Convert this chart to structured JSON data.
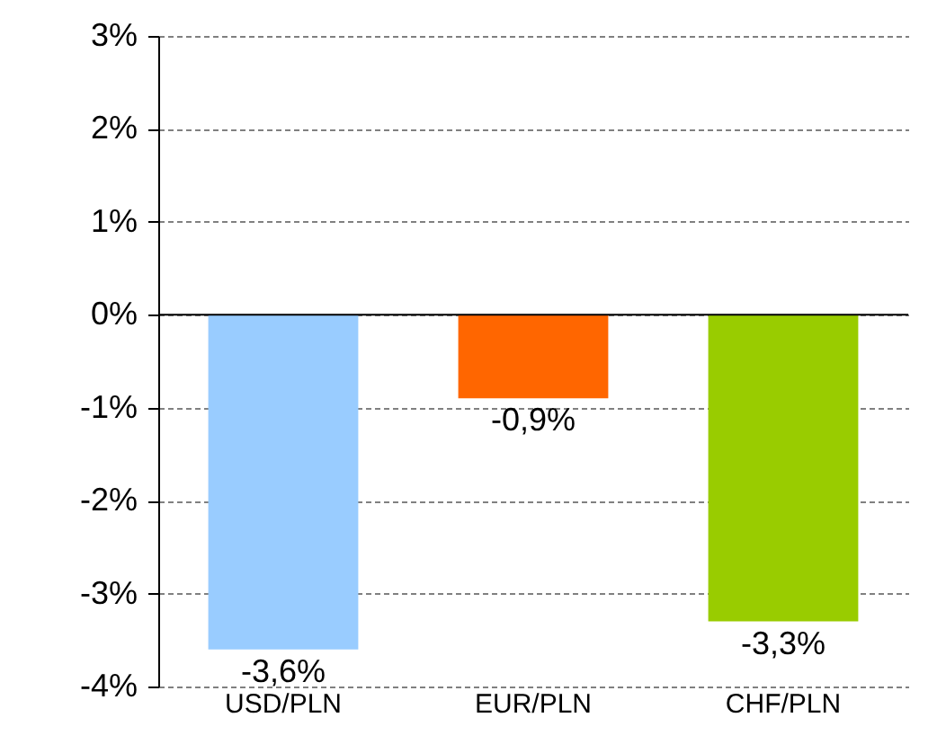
{
  "chart_data": {
    "type": "bar",
    "categories": [
      "USD/PLN",
      "EUR/PLN",
      "CHF/PLN"
    ],
    "values": [
      -3.6,
      -0.9,
      -3.3
    ],
    "colors": [
      "#99ccff",
      "#ff6600",
      "#99cc00"
    ],
    "value_labels": [
      "-3,6%",
      "-0,9%",
      "-3,3%"
    ],
    "ylim": [
      -4,
      3
    ],
    "yticks": [
      {
        "value": -4,
        "label": "-4%"
      },
      {
        "value": -3,
        "label": "-3%"
      },
      {
        "value": -2,
        "label": "-2%"
      },
      {
        "value": -1,
        "label": "-1%"
      },
      {
        "value": 0,
        "label": "0%"
      },
      {
        "value": 1,
        "label": "1%"
      },
      {
        "value": 2,
        "label": "2%"
      },
      {
        "value": 3,
        "label": "3%"
      }
    ],
    "grid": "y"
  }
}
